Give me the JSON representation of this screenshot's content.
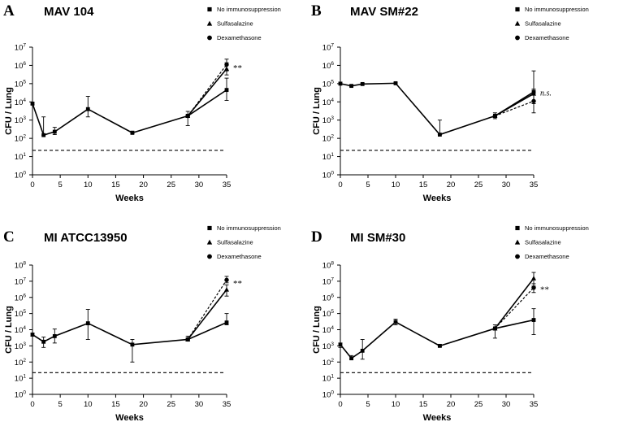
{
  "figure": {
    "x_ticks": [
      0,
      5,
      10,
      15,
      20,
      25,
      30,
      35
    ],
    "xlim": [
      0,
      35
    ]
  },
  "chart_data": [
    {
      "id": "A",
      "type": "line",
      "panel_letter": "A",
      "title": "MAV 104",
      "xlabel": "Weeks",
      "ylabel": "CFU / Lung",
      "ylim_log10": [
        0,
        7
      ],
      "y_ticks": [
        {
          "base": "10",
          "exp": "0"
        },
        {
          "base": "10",
          "exp": "1"
        },
        {
          "base": "10",
          "exp": "2"
        },
        {
          "base": "10",
          "exp": "3"
        },
        {
          "base": "10",
          "exp": "4"
        },
        {
          "base": "10",
          "exp": "5"
        },
        {
          "base": "10",
          "exp": "6"
        },
        {
          "base": "10",
          "exp": "7"
        }
      ],
      "detection_limit": 22,
      "baseline": {
        "x": [
          0,
          2,
          4,
          10,
          18,
          28
        ],
        "y": [
          8000,
          150,
          230,
          4000,
          200,
          1700
        ],
        "err_hi": [
          9000,
          1500,
          400,
          20000,
          250,
          3000
        ],
        "err_lo": [
          7000,
          150,
          160,
          1500,
          180,
          500
        ]
      },
      "series": [
        {
          "name": "No immunosuppression",
          "marker": "square",
          "dash": false,
          "x": [
            28,
            35
          ],
          "y": [
            1700,
            45000
          ],
          "err_hi": [
            3000,
            200000
          ],
          "err_lo": [
            500,
            12000
          ]
        },
        {
          "name": "Sulfasalazine",
          "marker": "triangle",
          "dash": false,
          "x": [
            28,
            35
          ],
          "y": [
            1700,
            650000
          ],
          "err_hi": [
            3000,
            1400000
          ],
          "err_lo": [
            500,
            300000
          ]
        },
        {
          "name": "Dexamethasone",
          "marker": "circle",
          "dash": true,
          "x": [
            28,
            35
          ],
          "y": [
            1700,
            1100000
          ],
          "err_hi": [
            3000,
            2200000
          ],
          "err_lo": [
            500,
            500000
          ]
        }
      ],
      "annotation": {
        "text": "**",
        "italic": false,
        "x": 35,
        "y": 700000
      }
    },
    {
      "id": "B",
      "type": "line",
      "panel_letter": "B",
      "title": "MAV SM#22",
      "xlabel": "Weeks",
      "ylabel": "CFU / Lung",
      "ylim_log10": [
        0,
        7
      ],
      "y_ticks": [
        {
          "base": "10",
          "exp": "0"
        },
        {
          "base": "10",
          "exp": "1"
        },
        {
          "base": "10",
          "exp": "2"
        },
        {
          "base": "10",
          "exp": "3"
        },
        {
          "base": "10",
          "exp": "4"
        },
        {
          "base": "10",
          "exp": "5"
        },
        {
          "base": "10",
          "exp": "6"
        },
        {
          "base": "10",
          "exp": "7"
        }
      ],
      "detection_limit": 22,
      "baseline": {
        "x": [
          0,
          2,
          4,
          10,
          18,
          28
        ],
        "y": [
          100000,
          75000,
          95000,
          105000,
          160,
          1700
        ],
        "err_hi": [
          120000,
          85000,
          105000,
          115000,
          1000,
          2500
        ],
        "err_lo": [
          90000,
          70000,
          90000,
          100000,
          160,
          1200
        ]
      },
      "series": [
        {
          "name": "No immunosuppression",
          "marker": "square",
          "dash": false,
          "x": [
            28,
            35
          ],
          "y": [
            1700,
            35000
          ],
          "err_hi": [
            2500,
            500000
          ],
          "err_lo": [
            1200,
            10000
          ]
        },
        {
          "name": "Sulfasalazine",
          "marker": "triangle",
          "dash": false,
          "x": [
            28,
            35
          ],
          "y": [
            1700,
            28000
          ],
          "err_hi": [
            2500,
            50000
          ],
          "err_lo": [
            1200,
            8000
          ]
        },
        {
          "name": "Dexamethasone",
          "marker": "circle",
          "dash": true,
          "x": [
            28,
            35
          ],
          "y": [
            1700,
            11000
          ],
          "err_hi": [
            2500,
            30000
          ],
          "err_lo": [
            1200,
            2500
          ]
        }
      ],
      "annotation": {
        "text": "n.s.",
        "italic": true,
        "x": 35,
        "y": 30000
      }
    },
    {
      "id": "C",
      "type": "line",
      "panel_letter": "C",
      "title": "MI ATCC13950",
      "xlabel": "Weeks",
      "ylabel": "CFU / Lung",
      "ylim_log10": [
        0,
        8
      ],
      "y_ticks": [
        {
          "base": "10",
          "exp": "0"
        },
        {
          "base": "10",
          "exp": "1"
        },
        {
          "base": "10",
          "exp": "2"
        },
        {
          "base": "10",
          "exp": "3"
        },
        {
          "base": "10",
          "exp": "4"
        },
        {
          "base": "10",
          "exp": "5"
        },
        {
          "base": "10",
          "exp": "6"
        },
        {
          "base": "10",
          "exp": "7"
        },
        {
          "base": "10",
          "exp": "8"
        }
      ],
      "detection_limit": 22,
      "baseline": {
        "x": [
          0,
          2,
          4,
          10,
          18,
          28
        ],
        "y": [
          5000,
          1800,
          4000,
          25000,
          1200,
          2500
        ],
        "err_hi": [
          6000,
          3500,
          11000,
          180000,
          2500,
          4000
        ],
        "err_lo": [
          4000,
          800,
          1500,
          2500,
          100,
          2000
        ]
      },
      "series": [
        {
          "name": "No immunosuppression",
          "marker": "square",
          "dash": false,
          "x": [
            28,
            35
          ],
          "y": [
            2500,
            28000
          ],
          "err_hi": [
            4000,
            100000
          ],
          "err_lo": [
            2000,
            20000
          ]
        },
        {
          "name": "Sulfasalazine",
          "marker": "triangle",
          "dash": false,
          "x": [
            28,
            35
          ],
          "y": [
            2500,
            3000000
          ],
          "err_hi": [
            4000,
            6000000
          ],
          "err_lo": [
            2000,
            1200000
          ]
        },
        {
          "name": "Dexamethasone",
          "marker": "circle",
          "dash": true,
          "x": [
            28,
            35
          ],
          "y": [
            2500,
            12000000
          ],
          "err_hi": [
            4000,
            20000000
          ],
          "err_lo": [
            2000,
            8000000
          ]
        }
      ],
      "annotation": {
        "text": "**",
        "italic": false,
        "x": 35,
        "y": 7000000
      }
    },
    {
      "id": "D",
      "type": "line",
      "panel_letter": "D",
      "title": "MI SM#30",
      "xlabel": "Weeks",
      "ylabel": "CFU / Lung",
      "ylim_log10": [
        0,
        8
      ],
      "y_ticks": [
        {
          "base": "10",
          "exp": "0"
        },
        {
          "base": "10",
          "exp": "1"
        },
        {
          "base": "10",
          "exp": "2"
        },
        {
          "base": "10",
          "exp": "3"
        },
        {
          "base": "10",
          "exp": "4"
        },
        {
          "base": "10",
          "exp": "5"
        },
        {
          "base": "10",
          "exp": "6"
        },
        {
          "base": "10",
          "exp": "7"
        },
        {
          "base": "10",
          "exp": "8"
        }
      ],
      "detection_limit": 22,
      "baseline": {
        "x": [
          0,
          2,
          4,
          10,
          18,
          28
        ],
        "y": [
          1200,
          170,
          500,
          30000,
          1000,
          12000
        ],
        "err_hi": [
          1500,
          250,
          2500,
          45000,
          1200,
          20000
        ],
        "err_lo": [
          800,
          150,
          150,
          20000,
          900,
          3000
        ]
      },
      "series": [
        {
          "name": "No immunosuppression",
          "marker": "square",
          "dash": false,
          "x": [
            28,
            35
          ],
          "y": [
            12000,
            40000
          ],
          "err_hi": [
            20000,
            200000
          ],
          "err_lo": [
            3000,
            5000
          ]
        },
        {
          "name": "Sulfasalazine",
          "marker": "triangle",
          "dash": false,
          "x": [
            28,
            35
          ],
          "y": [
            12000,
            15000000
          ],
          "err_hi": [
            20000,
            35000000
          ],
          "err_lo": [
            3000,
            5000000
          ]
        },
        {
          "name": "Dexamethasone",
          "marker": "circle",
          "dash": true,
          "x": [
            28,
            35
          ],
          "y": [
            12000,
            4000000
          ],
          "err_hi": [
            20000,
            7000000
          ],
          "err_lo": [
            3000,
            2000000
          ]
        }
      ],
      "annotation": {
        "text": "**",
        "italic": false,
        "x": 35,
        "y": 3000000
      }
    }
  ]
}
